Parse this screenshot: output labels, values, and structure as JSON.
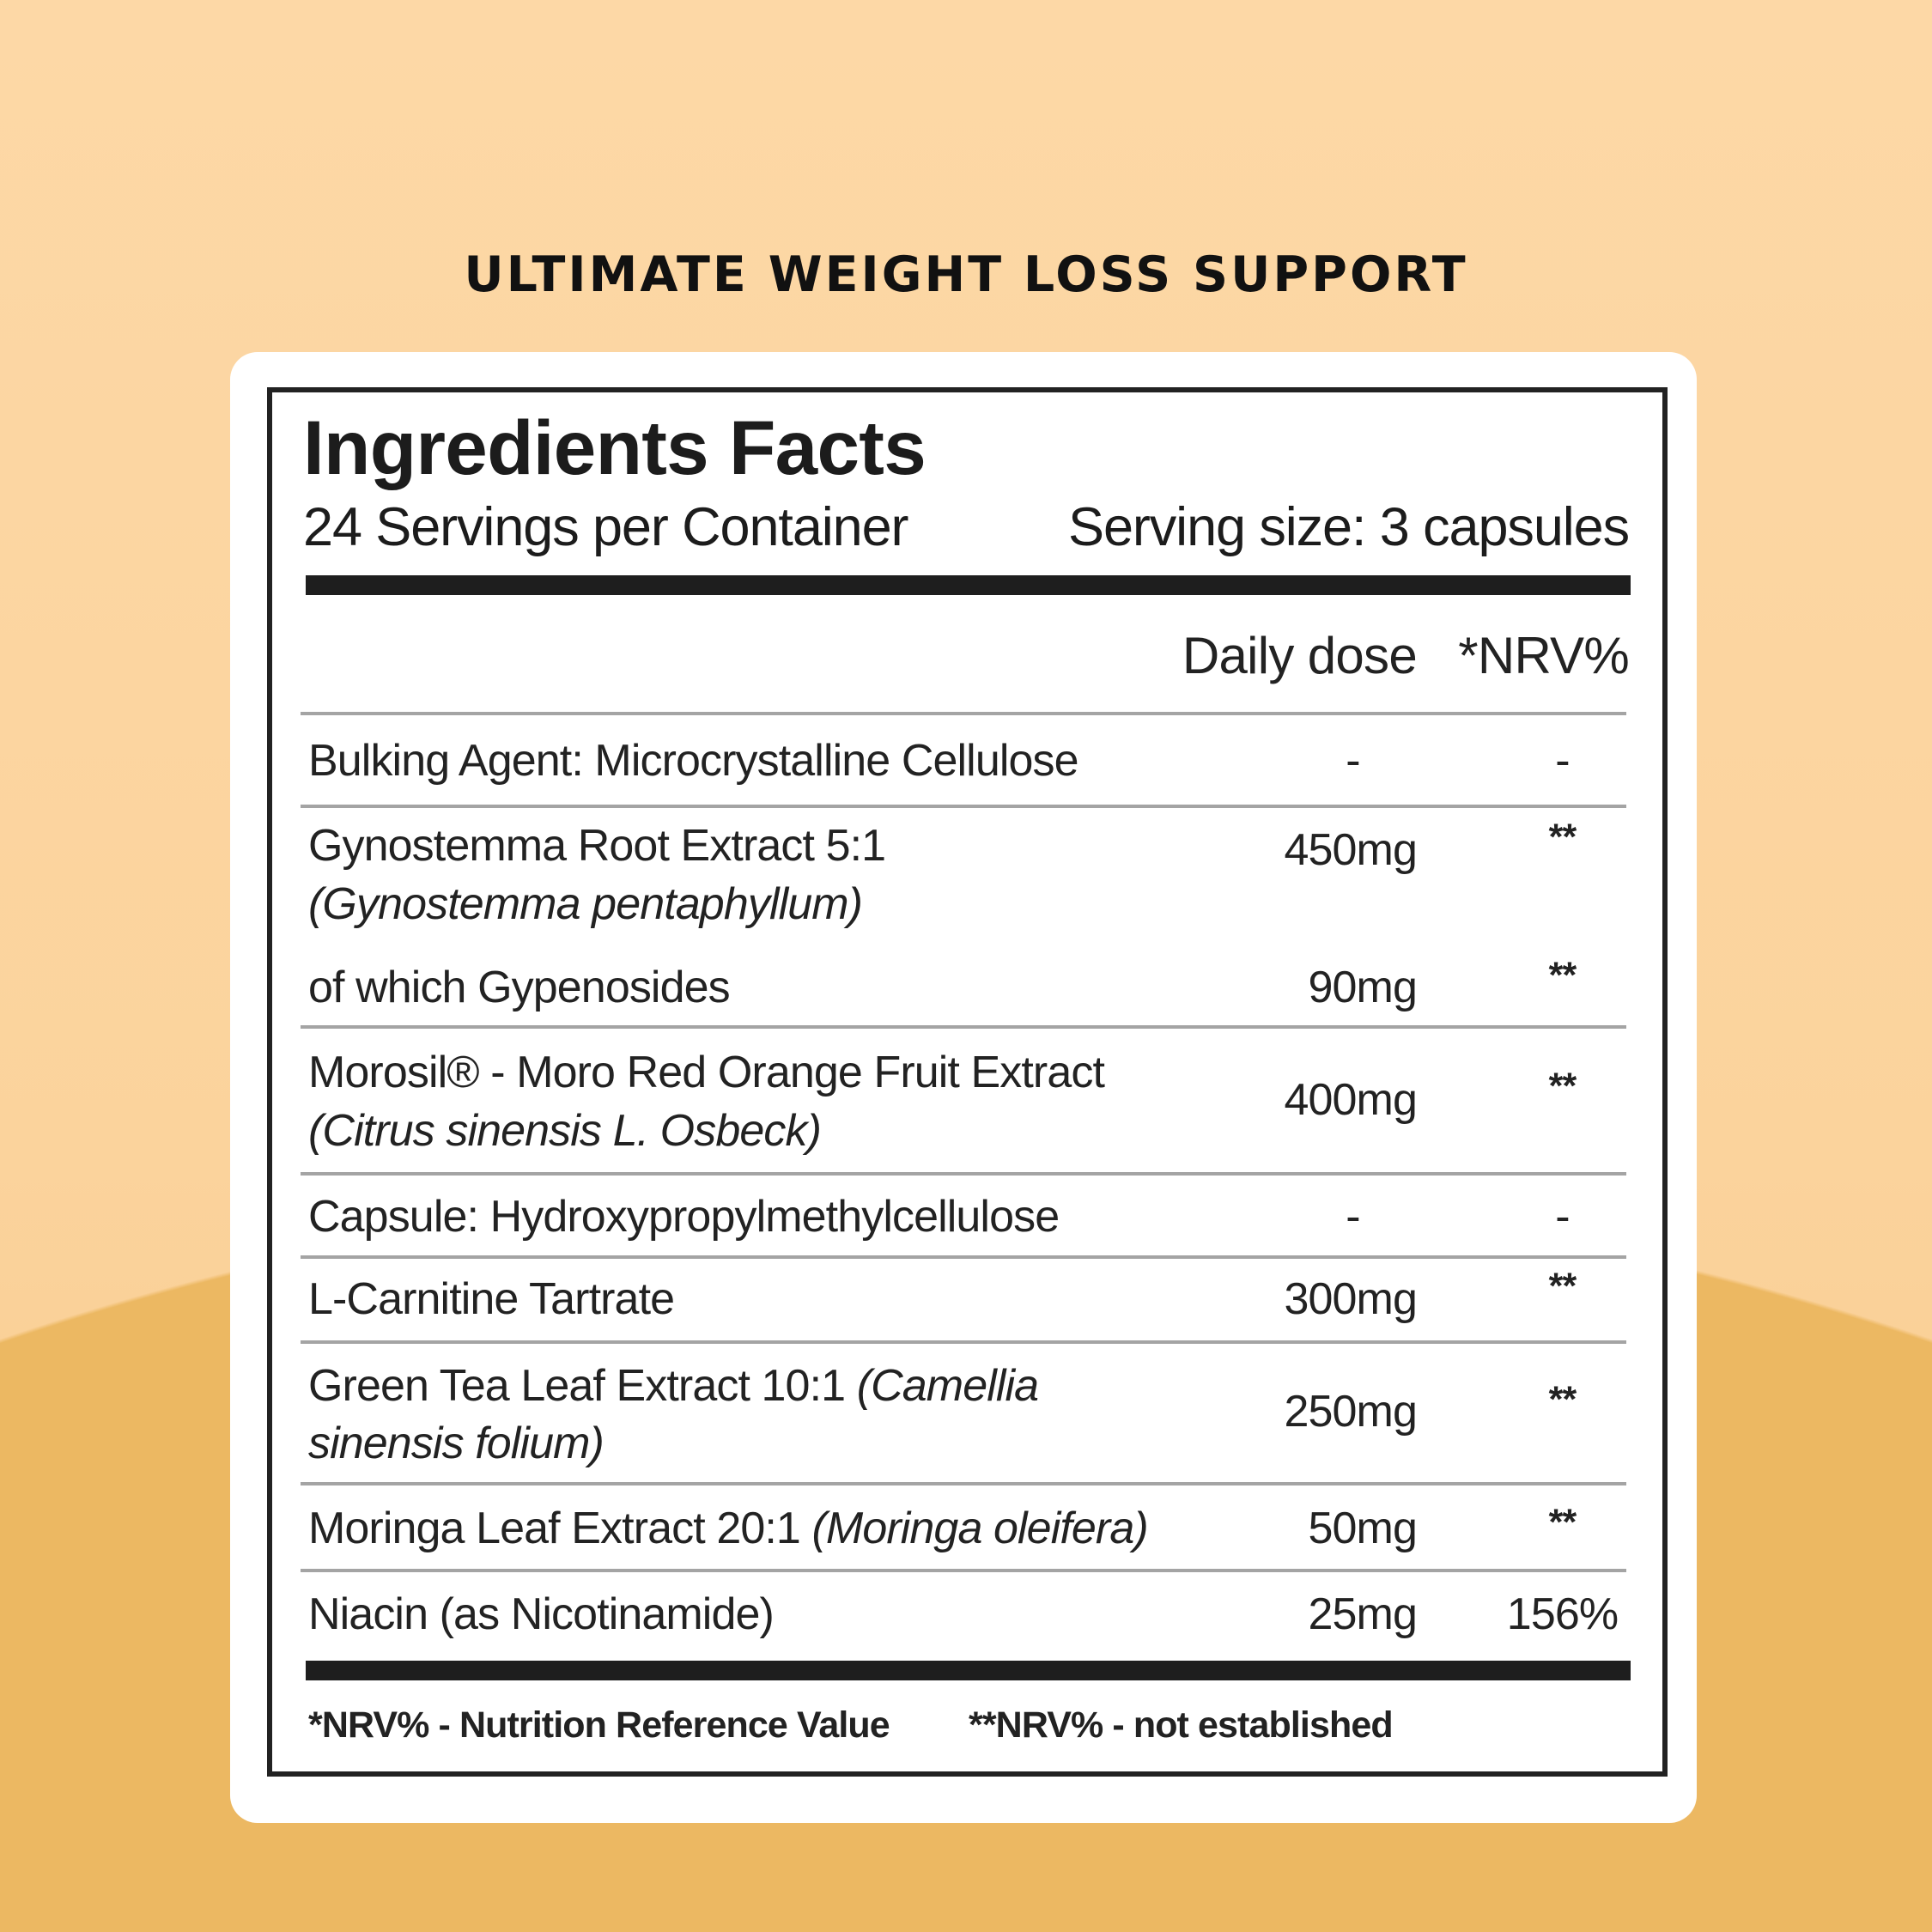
{
  "headline": "ULTIMATE WEIGHT LOSS SUPPORT",
  "label": {
    "title": "Ingredients Facts",
    "servings": "24 Servings per Container",
    "serving_size": "Serving size: 3 capsules",
    "columns": {
      "dose": "Daily dose",
      "nrv": "*NRV%"
    },
    "rows": [
      {
        "name": "Bulking Agent: Microcrystalline Cellulose",
        "dose": "-",
        "nrv": "-"
      },
      {
        "name": "Gynostemma Root Extract 5:1",
        "latin": "(Gynostemma pentaphyllum)",
        "dose": "450mg",
        "nrv": "**"
      },
      {
        "name": "of which Gypenosides",
        "dose": "90mg",
        "nrv": "**"
      },
      {
        "name": "Morosil® - Moro Red Orange Fruit Extract",
        "latin": "(Citrus sinensis L. Osbeck)",
        "dose": "400mg",
        "nrv": "**"
      },
      {
        "name": "Capsule: Hydroxypropylmethylcellulose",
        "dose": "-",
        "nrv": "-"
      },
      {
        "name": "L-Carnitine Tartrate",
        "dose": "300mg",
        "nrv": "**"
      },
      {
        "name": "Green Tea Leaf Extract 10:1 ",
        "latin": "(Camellia",
        "latin2": "sinensis folium)",
        "dose": "250mg",
        "nrv": "**"
      },
      {
        "name": "Moringa Leaf Extract 20:1 ",
        "latin": "(Moringa oleifera)",
        "dose": "50mg",
        "nrv": "**"
      },
      {
        "name": "Niacin (as Nicotinamide)",
        "dose": "25mg",
        "nrv": "156%"
      }
    ],
    "footnote": {
      "nrv": "*NRV% - Nutrition Reference Value",
      "not_established": "**NRV% - not established"
    }
  },
  "colors": {
    "background_top": "#fdd8a6",
    "background_wave": "#ecb862",
    "card": "#ffffff",
    "ink": "#222222"
  }
}
